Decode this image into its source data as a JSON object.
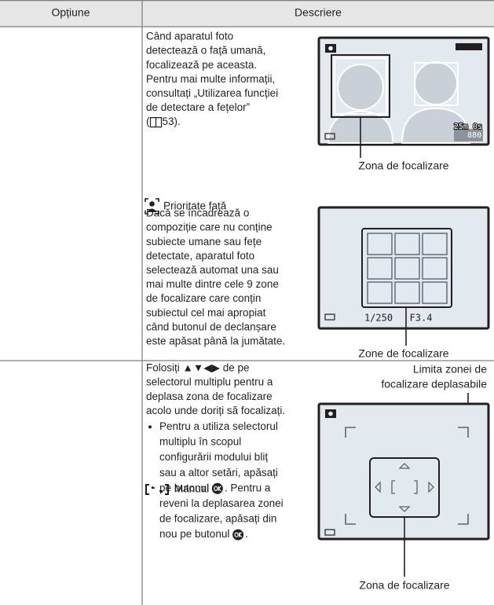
{
  "header": {
    "option": "Opțiune",
    "description": "Descriere"
  },
  "rows": [
    {
      "option": "Prioritate față",
      "paragraphs": [
        {
          "lines": [
            "Când aparatul foto",
            "detectează o față umană,",
            "focalizează pe aceasta.",
            "Pentru mai multe informații,",
            "consultați „Utilizarea funcției",
            "de detectare a fețelor”"
          ],
          "ref_open": "(",
          "ref_page": "53)."
        },
        {
          "lines": [
            "Dacă se încadrează o",
            "compoziție care nu conține",
            "subiecte umane sau fețe",
            "detectate, aparatul foto",
            "selectează automat una sau",
            "mai multe dintre cele 9 zone",
            "de focalizare care conțin",
            "subiectul cel mai apropiat",
            "când butonul de declanșare",
            "este apăsat până la jumătate."
          ]
        }
      ],
      "figures": [
        {
          "caption": "Zona de focalizare",
          "screen_texts": [
            "25m 0s",
            "880"
          ]
        },
        {
          "caption": "Zone de focalizare",
          "screen_texts": [
            "1/250",
            "F3.4"
          ]
        }
      ]
    },
    {
      "option": "Manual",
      "intro_lines": [
        "Folosiți ▲▼◀▶ de pe",
        "selectorul multiplu pentru a",
        "deplasa zona de focalizare",
        "acolo unde doriți să focalizați."
      ],
      "bullet_lines": [
        "Pentru a utiliza selectorul",
        "multiplu în scopul",
        "configurării modului bliț",
        "sau a altor setări, apăsați",
        {
          "before": "pe butonul ",
          "after": ". Pentru a"
        },
        "reveni la deplasarea zonei",
        "de focalizare, apăsați din",
        {
          "before": "nou pe butonul ",
          "after": "."
        }
      ],
      "figures": [
        {
          "caption_top": [
            "Limita zonei de",
            "focalizare deplasabile"
          ],
          "caption": "Zona de focalizare"
        }
      ]
    }
  ]
}
